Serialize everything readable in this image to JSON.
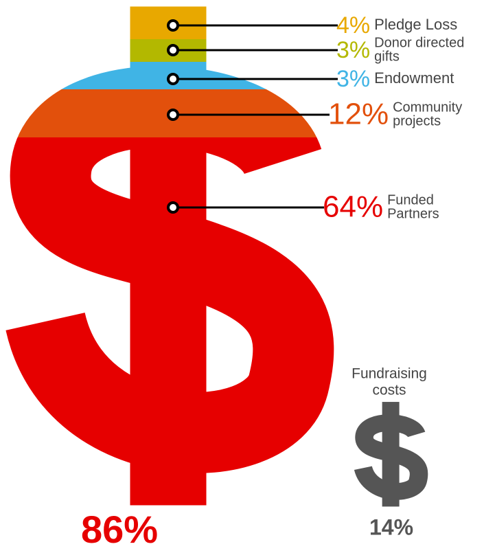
{
  "segments": [
    {
      "percent": "4%",
      "label": [
        "Pledge Loss"
      ],
      "color": "#e8a800"
    },
    {
      "percent": "3%",
      "label": [
        "Donor directed",
        "gifts"
      ],
      "color": "#b3b800"
    },
    {
      "percent": "3%",
      "label": [
        "Endowment"
      ],
      "color": "#40b4e5"
    },
    {
      "percent": "12%",
      "label": [
        "Community",
        "projects"
      ],
      "color": "#e2500c"
    },
    {
      "percent": "64%",
      "label": [
        "Funded",
        "Partners"
      ],
      "color": "#e60000"
    }
  ],
  "total": {
    "percent": "86%",
    "color": "#e60000"
  },
  "fundraising": {
    "label": [
      "Fundraising",
      "costs"
    ],
    "percent": "14%",
    "color": "#555555"
  }
}
